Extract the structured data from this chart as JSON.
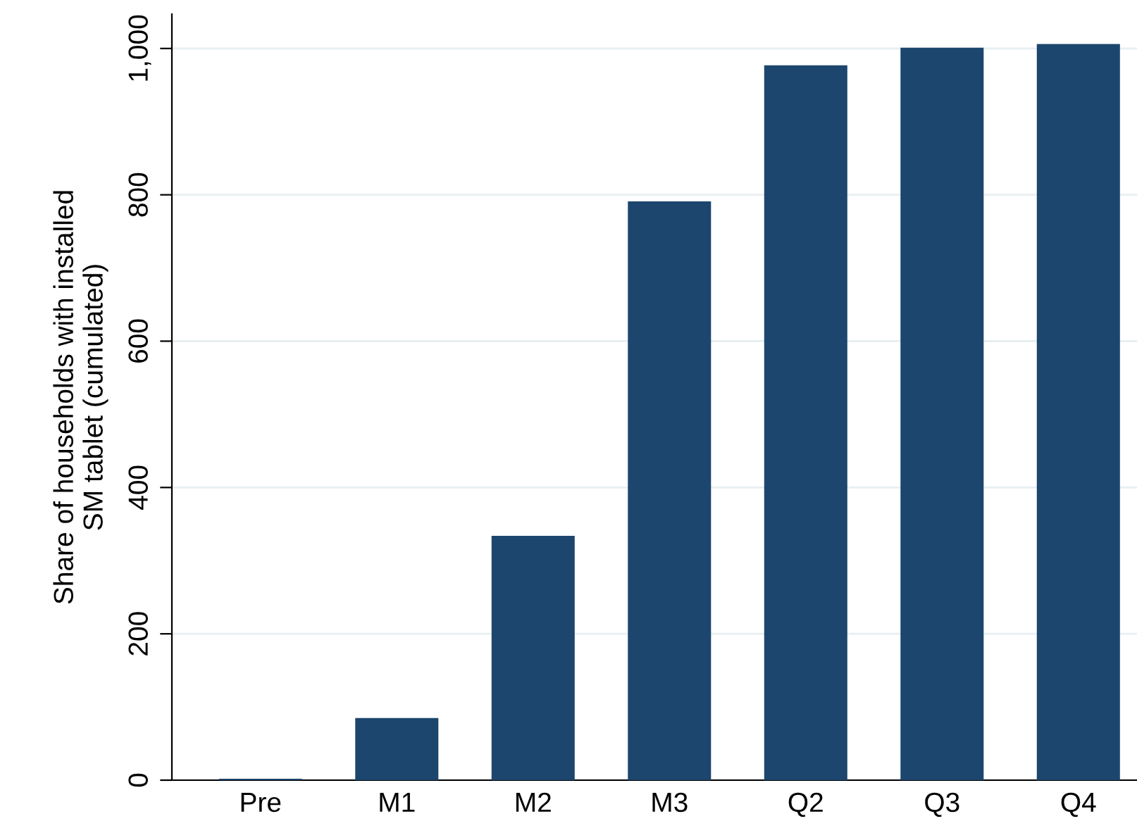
{
  "chart_data": {
    "type": "bar",
    "ylabel": "Share of households with installed\nSM tablet (cumulated)",
    "categories": [
      "Pre",
      "M1",
      "M2",
      "M3",
      "Q2",
      "Q3",
      "Q4"
    ],
    "values": [
      2,
      85,
      334,
      791,
      977,
      1001,
      1006
    ],
    "color": "#1c466d",
    "ylim": [
      0,
      1047
    ],
    "yticks": [
      0,
      200,
      400,
      600,
      800,
      {
        "value": 1000,
        "label": "1,000"
      }
    ],
    "grid": "y"
  }
}
